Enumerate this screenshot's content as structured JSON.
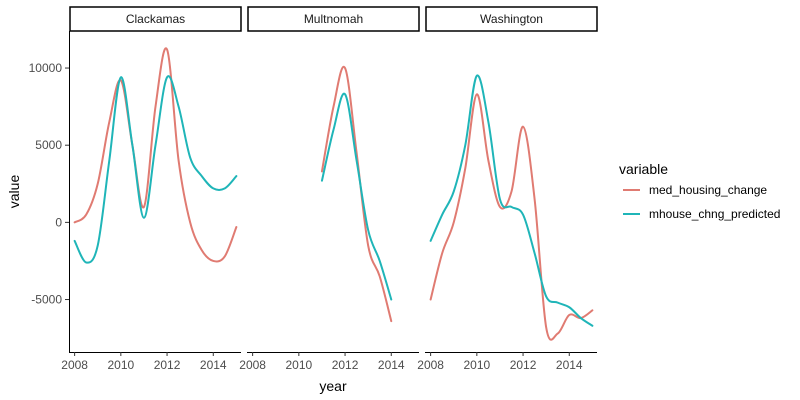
{
  "chart_data": {
    "type": "line",
    "xlabel": "year",
    "ylabel": "value",
    "xlim": [
      2007.8,
      2015.2
    ],
    "ylim": [
      -8400,
      12400
    ],
    "x_ticks": [
      2008,
      2010,
      2012,
      2014
    ],
    "y_ticks": [
      -5000,
      0,
      5000,
      10000
    ],
    "legend": {
      "title": "variable",
      "position": "right",
      "entries": [
        {
          "name": "med_housing_change",
          "color": "#E07B72"
        },
        {
          "name": "mhouse_chng_predicted",
          "color": "#1FB5B8"
        }
      ]
    },
    "facets": [
      {
        "name": "Clackamas",
        "series": [
          {
            "name": "med_housing_change",
            "x": [
              2008,
              2008.5,
              2009,
              2009.5,
              2010,
              2010.5,
              2011,
              2011.5,
              2012,
              2012.5,
              2013,
              2013.5,
              2014,
              2014.5,
              2015
            ],
            "y": [
              0,
              500,
              2500,
              6500,
              9200,
              5000,
              1000,
              7500,
              11200,
              4000,
              0,
              -1800,
              -2500,
              -2200,
              -300
            ]
          },
          {
            "name": "mhouse_chng_predicted",
            "x": [
              2008,
              2008.5,
              2009,
              2009.5,
              2010,
              2010.5,
              2011,
              2011.5,
              2012,
              2012.5,
              2013,
              2013.5,
              2014,
              2014.5,
              2015
            ],
            "y": [
              -1200,
              -2600,
              -1500,
              4000,
              9400,
              5000,
              300,
              5000,
              9400,
              7500,
              4200,
              3000,
              2200,
              2200,
              3000
            ]
          }
        ]
      },
      {
        "name": "Multnomah",
        "series": [
          {
            "name": "med_housing_change",
            "x": [
              2011,
              2011.5,
              2012,
              2012.5,
              2013,
              2013.5,
              2014
            ],
            "y": [
              3300,
              7500,
              10000,
              4500,
              -1500,
              -3500,
              -6400
            ]
          },
          {
            "name": "mhouse_chng_predicted",
            "x": [
              2011,
              2011.5,
              2012,
              2012.5,
              2013,
              2013.5,
              2014
            ],
            "y": [
              2700,
              6000,
              8300,
              4000,
              -500,
              -2500,
              -5000
            ]
          }
        ]
      },
      {
        "name": "Washington",
        "series": [
          {
            "name": "med_housing_change",
            "x": [
              2008,
              2008.5,
              2009,
              2009.5,
              2010,
              2010.5,
              2011,
              2011.5,
              2012,
              2012.5,
              2013,
              2013.5,
              2014,
              2014.5,
              2015
            ],
            "y": [
              -5000,
              -2000,
              0,
              3500,
              8300,
              4000,
              1000,
              2000,
              6200,
              1500,
              -6800,
              -7200,
              -6000,
              -6200,
              -5700
            ]
          },
          {
            "name": "mhouse_chng_predicted",
            "x": [
              2008,
              2008.5,
              2009,
              2009.5,
              2010,
              2010.5,
              2011,
              2011.5,
              2012,
              2012.5,
              2013,
              2013.5,
              2014,
              2014.5,
              2015
            ],
            "y": [
              -1200,
              500,
              2000,
              5000,
              9500,
              6500,
              1500,
              1000,
              500,
              -2000,
              -4800,
              -5200,
              -5500,
              -6200,
              -6700
            ]
          }
        ]
      }
    ]
  }
}
